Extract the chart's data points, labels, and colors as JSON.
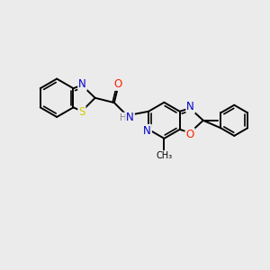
{
  "background_color": "#ebebeb",
  "bond_color": "#000000",
  "atom_colors": {
    "N": "#0000cc",
    "O": "#ff2200",
    "S": "#cccc00",
    "H": "#888888",
    "C": "#000000"
  },
  "figsize": [
    3.0,
    3.0
  ],
  "dpi": 100,
  "lw": 1.4,
  "lw2": 1.2,
  "doff": 0.1,
  "fs": 8.5
}
